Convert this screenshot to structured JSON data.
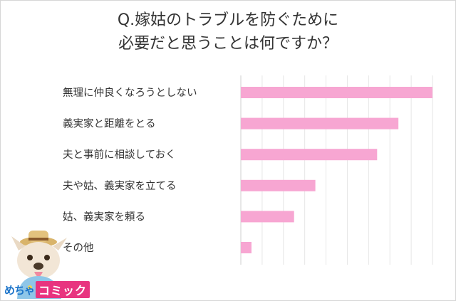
{
  "chart_data": {
    "type": "bar",
    "orientation": "horizontal",
    "title_lines": [
      "Q.嫁姑のトラブルを防ぐために",
      "必要だと思うことは何ですか？"
    ],
    "categories": [
      "無理に仲良くなろうとしない",
      "義実家と距離をとる",
      "夫と事前に相談しておく",
      "夫や姑、義実家を立てる",
      "姑、義実家を頼る",
      "その他"
    ],
    "values": [
      90,
      74,
      64,
      35,
      25,
      5
    ],
    "xlim": [
      0,
      90
    ],
    "grid": true,
    "bar_color": "#f7a6d2"
  },
  "logo": {
    "word1": "めちゃ",
    "word2": "コミック"
  }
}
